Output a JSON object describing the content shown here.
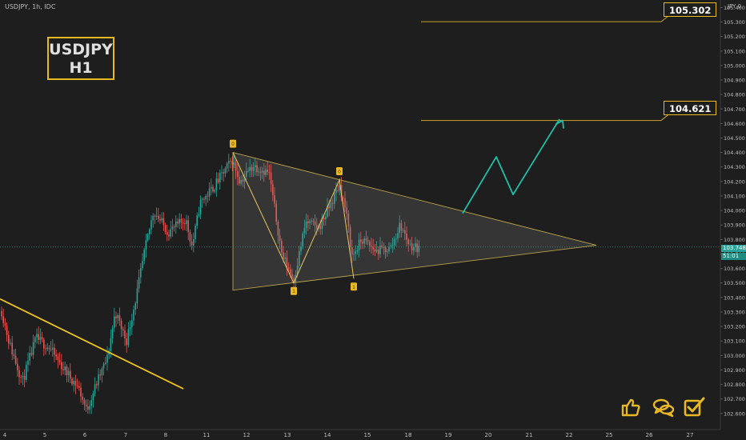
{
  "header": {
    "symbol_line": "USDJPY, 1h, IDC",
    "unit": "JPY",
    "unit_suffix": "0"
  },
  "tag": {
    "symbol": "USDJPY",
    "timeframe": "H1"
  },
  "targets": [
    "105.302",
    "104.621"
  ],
  "current": {
    "price": "103.748",
    "countdown": "51:01"
  },
  "colors": {
    "background": "#1e1e1e",
    "up": "#26a69a",
    "down": "#ef5350",
    "accent": "#e8b923",
    "projection": "#1fbfa8"
  },
  "icons": [
    "thumbs-up-icon",
    "chat-bubbles-icon",
    "checkbox-icon"
  ],
  "chart_data": {
    "type": "candlestick",
    "y_ticks": [
      "105.400",
      "105.300",
      "105.200",
      "105.100",
      "105.000",
      "104.900",
      "104.800",
      "104.700",
      "104.600",
      "104.500",
      "104.400",
      "104.300",
      "104.200",
      "104.100",
      "104.000",
      "103.900",
      "103.800",
      "103.700",
      "103.600",
      "103.500",
      "103.400",
      "103.300",
      "103.200",
      "103.100",
      "103.000",
      "102.900",
      "102.800",
      "102.700",
      "102.600"
    ],
    "x_ticks": [
      "4",
      "5",
      "6",
      "7",
      "8",
      "11",
      "12",
      "13",
      "14",
      "15",
      "18",
      "19",
      "20",
      "21",
      "22",
      "25",
      "26",
      "27"
    ],
    "ylim": [
      102.56,
      105.44
    ],
    "pattern": "symmetrical triangle",
    "triangle": {
      "apex": 103.76,
      "upper_start": 104.4,
      "lower_start": 103.45
    },
    "downtrend_line": {
      "start": 103.39,
      "end": 102.77
    },
    "pivots": [
      {
        "label": "0",
        "price": 104.4
      },
      {
        "label": "1",
        "price": 103.5
      },
      {
        "label": "0",
        "price": 104.21
      },
      {
        "label": "1",
        "price": 103.53
      }
    ],
    "projection_path": [
      103.98,
      104.37,
      104.11,
      104.63
    ],
    "targets": [
      105.302,
      104.621
    ],
    "current_price": 103.748
  }
}
